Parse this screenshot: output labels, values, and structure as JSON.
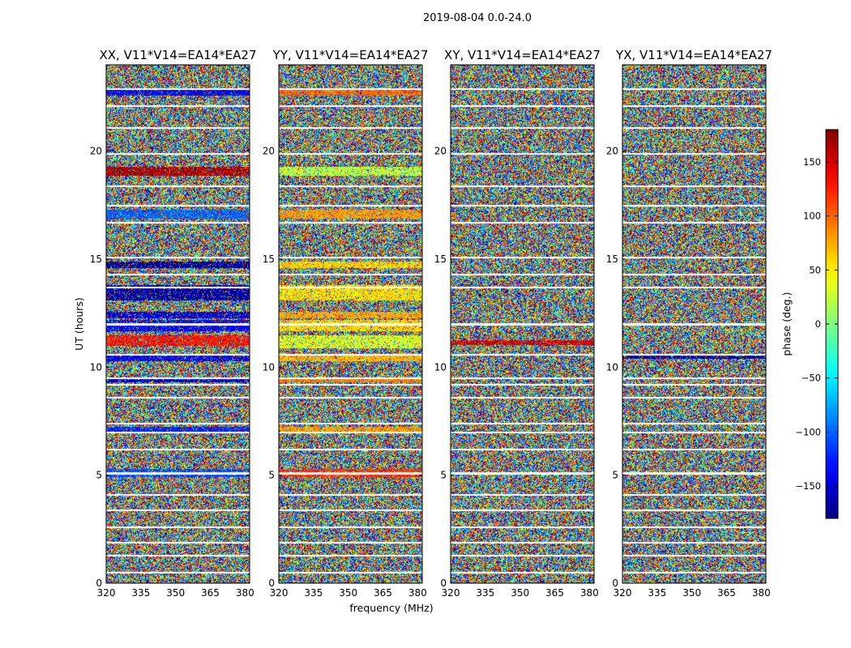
{
  "figure": {
    "suptitle": "2019-08-04 0.0-24.0",
    "ylabel": "UT (hours)",
    "xlabel": "frequency (MHz)"
  },
  "chart_data": {
    "type": "heatmap",
    "title": "2019-08-04 0.0-24.0",
    "xlabel": "frequency (MHz)",
    "ylabel": "UT (hours)",
    "xlim": [
      320,
      382
    ],
    "ylim": [
      0,
      24
    ],
    "xticks": [
      320,
      335,
      350,
      365,
      380
    ],
    "yticks": [
      0,
      5,
      10,
      15,
      20
    ],
    "colorbar": {
      "label": "phase (deg.)",
      "range": [
        -180,
        180
      ],
      "ticks": [
        -150,
        -100,
        -50,
        0,
        50,
        100,
        150
      ],
      "colormap": "jet"
    },
    "panels": [
      {
        "title": "XX, V11*V14=EA14*EA27",
        "flagged_rows_hours": [
          0.5,
          1.3,
          1.9,
          2.6,
          3.4,
          4.1,
          5.1,
          6.2,
          7.0,
          7.4,
          8.6,
          9.2,
          9.5,
          10.6,
          12.0,
          13.7,
          14.3,
          15.1,
          16.7,
          17.5,
          18.4,
          19.9,
          21.1,
          22.1,
          22.9
        ],
        "coherent_bands": [
          {
            "hours": [
              4.95,
              5.3
            ],
            "phase": -110
          },
          {
            "hours": [
              6.95,
              7.25
            ],
            "phase": -125
          },
          {
            "hours": [
              9.3,
              9.55
            ],
            "phase": -160
          },
          {
            "hours": [
              10.3,
              10.6
            ],
            "phase": -140
          },
          {
            "hours": [
              11.0,
              11.5
            ],
            "phase": 130
          },
          {
            "hours": [
              11.7,
              12.2
            ],
            "phase": -140
          },
          {
            "hours": [
              12.3,
              12.6
            ],
            "phase": -150
          },
          {
            "hours": [
              13.1,
              13.8
            ],
            "phase": -170
          },
          {
            "hours": [
              14.6,
              14.9
            ],
            "phase": -175
          },
          {
            "hours": [
              16.9,
              17.3
            ],
            "phase": -100
          },
          {
            "hours": [
              18.9,
              19.3
            ],
            "phase": 165
          },
          {
            "hours": [
              22.6,
              22.9
            ],
            "phase": -140
          }
        ]
      },
      {
        "title": "YY, V11*V14=EA14*EA27",
        "flagged_rows_hours": [
          0.5,
          1.3,
          1.9,
          2.6,
          3.4,
          4.1,
          5.1,
          6.2,
          7.0,
          7.4,
          8.6,
          9.2,
          9.5,
          10.6,
          12.0,
          13.7,
          14.3,
          15.1,
          16.7,
          17.5,
          18.4,
          19.9,
          21.1,
          22.1,
          22.9
        ],
        "coherent_bands": [
          {
            "hours": [
              4.95,
              5.3
            ],
            "phase": 120
          },
          {
            "hours": [
              6.95,
              7.25
            ],
            "phase": 80
          },
          {
            "hours": [
              9.3,
              9.55
            ],
            "phase": 90
          },
          {
            "hours": [
              10.3,
              10.6
            ],
            "phase": 70
          },
          {
            "hours": [
              10.9,
              11.5
            ],
            "phase": 30
          },
          {
            "hours": [
              11.7,
              12.2
            ],
            "phase": 60
          },
          {
            "hours": [
              12.3,
              12.6
            ],
            "phase": 75
          },
          {
            "hours": [
              13.1,
              13.8
            ],
            "phase": 55
          },
          {
            "hours": [
              14.6,
              14.9
            ],
            "phase": 60
          },
          {
            "hours": [
              16.9,
              17.3
            ],
            "phase": 80
          },
          {
            "hours": [
              18.9,
              19.3
            ],
            "phase": 20
          },
          {
            "hours": [
              22.6,
              22.9
            ],
            "phase": 100
          }
        ]
      },
      {
        "title": "XY, V11*V14=EA14*EA27",
        "flagged_rows_hours": [
          0.5,
          1.3,
          1.9,
          2.6,
          3.4,
          4.1,
          5.1,
          6.2,
          7.0,
          7.4,
          8.6,
          9.2,
          9.5,
          10.6,
          12.0,
          13.7,
          14.3,
          15.1,
          16.7,
          17.5,
          18.4,
          19.9,
          21.1,
          22.1,
          22.9
        ],
        "coherent_bands": [
          {
            "hours": [
              11.05,
              11.25
            ],
            "phase": 150
          }
        ]
      },
      {
        "title": "YX, V11*V14=EA14*EA27",
        "flagged_rows_hours": [
          0.5,
          1.3,
          1.9,
          2.6,
          3.4,
          4.1,
          5.1,
          6.2,
          7.0,
          7.4,
          8.6,
          9.2,
          9.5,
          10.6,
          12.0,
          13.7,
          14.3,
          15.1,
          16.7,
          17.5,
          18.4,
          19.9,
          21.1,
          22.1,
          22.9
        ],
        "coherent_bands": [
          {
            "hours": [
              10.4,
              10.6
            ],
            "phase": -170
          }
        ]
      }
    ]
  }
}
